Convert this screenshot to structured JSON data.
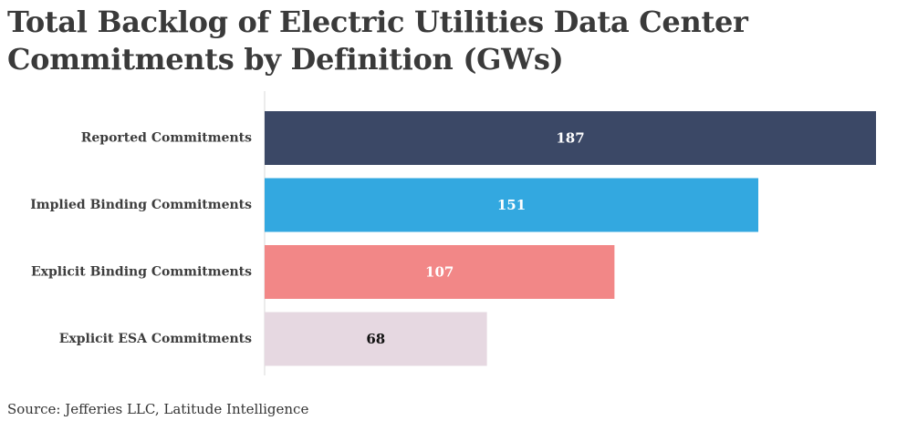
{
  "chart_data": {
    "type": "bar",
    "orientation": "horizontal",
    "title": "Total Backlog of Electric Utilities Data Center Commitments by Definition (GWs)",
    "categories": [
      "Reported Commitments",
      "Implied Binding Commitments",
      "Explicit Binding Commitments",
      "Explicit ESA Commitments"
    ],
    "values": [
      187,
      151,
      107,
      68
    ],
    "bar_colors": [
      "#3b4866",
      "#33a8e0",
      "#f28787",
      "#e6d8e1"
    ],
    "label_colors": [
      "#ffffff",
      "#ffffff",
      "#ffffff",
      "#111111"
    ],
    "xlim": [
      0,
      187
    ],
    "grid": false,
    "xlabel": "",
    "ylabel": ""
  },
  "source": "Source: Jefferies LLC, Latitude Intelligence"
}
